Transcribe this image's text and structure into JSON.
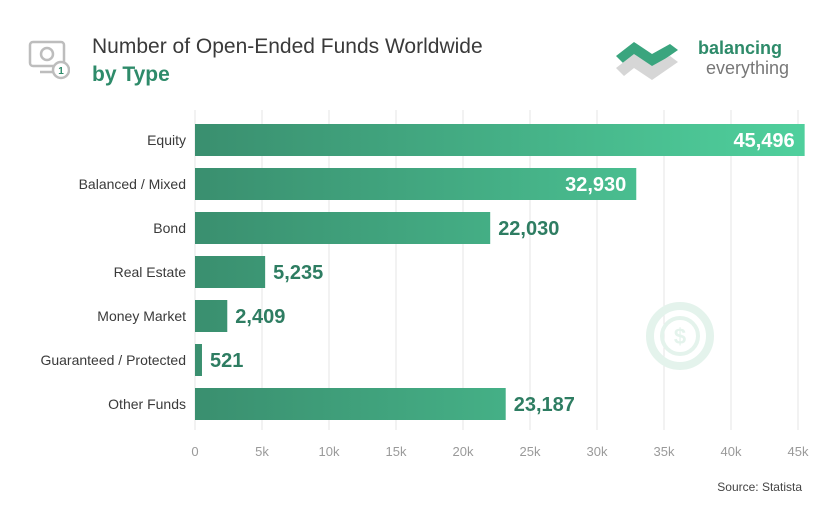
{
  "header": {
    "title": "Number of Open-Ended Funds Worldwide",
    "subtitle": "by Type",
    "icon": "money-display-icon"
  },
  "logo": {
    "line1": "balancing",
    "line2": "everything",
    "brand_color": "#2e8b6a"
  },
  "source": "Source: Statista",
  "colors": {
    "bar_dark": "#3a8f6f",
    "bar_light": "#4fcf9c",
    "label_teal": "#2e7d62",
    "inside_label": "#ffffff",
    "grid": "#e6e6e6",
    "axis_text": "#9a9a9a"
  },
  "chart_data": {
    "type": "bar",
    "orientation": "horizontal",
    "title": "Number of Open-Ended Funds Worldwide",
    "subtitle": "by Type",
    "categories": [
      "Equity",
      "Balanced / Mixed",
      "Bond",
      "Real Estate",
      "Money Market",
      "Guaranteed / Protected",
      "Other Funds"
    ],
    "values": [
      45496,
      32930,
      22030,
      5235,
      2409,
      521,
      23187
    ],
    "value_labels": [
      "45,496",
      "32,930",
      "22,030",
      "5,235",
      "2,409",
      "521",
      "23,187"
    ],
    "xlim": [
      0,
      45000
    ],
    "xticks": [
      0,
      5000,
      10000,
      15000,
      20000,
      25000,
      30000,
      35000,
      40000,
      45000
    ],
    "xtick_labels": [
      "0",
      "5k",
      "10k",
      "15k",
      "20k",
      "25k",
      "30k",
      "35k",
      "40k",
      "45k"
    ],
    "grid": true,
    "legend": "none"
  }
}
